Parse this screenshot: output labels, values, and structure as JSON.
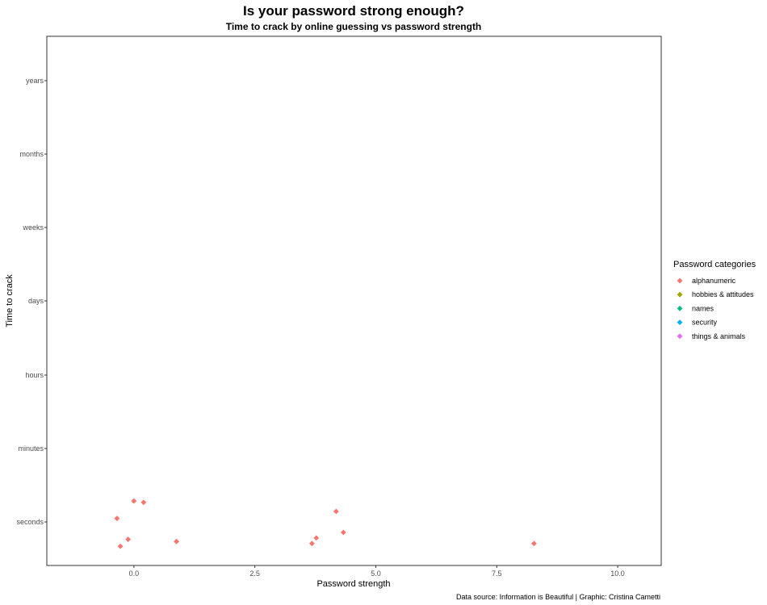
{
  "chart_data": {
    "type": "scatter",
    "title": "Is your password strong enough?",
    "subtitle": "Time to crack by online guessing vs password strength",
    "xlabel": "Password strength",
    "ylabel": "Time to crack",
    "caption": "Data source: Information is Beautiful | Graphic: Cristina Cametti",
    "xlim": [
      -1.8,
      10.9
    ],
    "x_ticks": [
      0.0,
      2.5,
      5.0,
      7.5,
      10.0
    ],
    "x_tick_labels": [
      "0.0",
      "2.5",
      "5.0",
      "7.5",
      "10.0"
    ],
    "y_categories": [
      "seconds",
      "minutes",
      "hours",
      "days",
      "weeks",
      "months",
      "years"
    ],
    "grid": false,
    "legend": {
      "title": "Password categories",
      "position": "right",
      "entries": [
        {
          "label": "alphanumeric",
          "color": "#f8766d"
        },
        {
          "label": "hobbies & attitudes",
          "color": "#a3a500"
        },
        {
          "label": "names",
          "color": "#00bf7d"
        },
        {
          "label": "security",
          "color": "#00b0f6"
        },
        {
          "label": "things & animals",
          "color": "#e76bf3"
        }
      ]
    },
    "series": [
      {
        "name": "alphanumeric",
        "color": "#f8766d",
        "points": [
          {
            "x": -0.35,
            "y": "seconds",
            "jitter": -0.05
          },
          {
            "x": -0.28,
            "y": "seconds",
            "jitter": 0.35
          },
          {
            "x": -0.12,
            "y": "seconds",
            "jitter": 0.25
          },
          {
            "x": 0.0,
            "y": "seconds",
            "jitter": -0.3
          },
          {
            "x": 0.2,
            "y": "seconds",
            "jitter": -0.28
          },
          {
            "x": 0.88,
            "y": "seconds",
            "jitter": 0.28
          },
          {
            "x": 3.68,
            "y": "seconds",
            "jitter": 0.31
          },
          {
            "x": 3.77,
            "y": "seconds",
            "jitter": 0.23
          },
          {
            "x": 4.18,
            "y": "seconds",
            "jitter": -0.15
          },
          {
            "x": 4.33,
            "y": "seconds",
            "jitter": 0.15
          },
          {
            "x": 8.27,
            "y": "seconds",
            "jitter": 0.31
          }
        ]
      }
    ]
  }
}
